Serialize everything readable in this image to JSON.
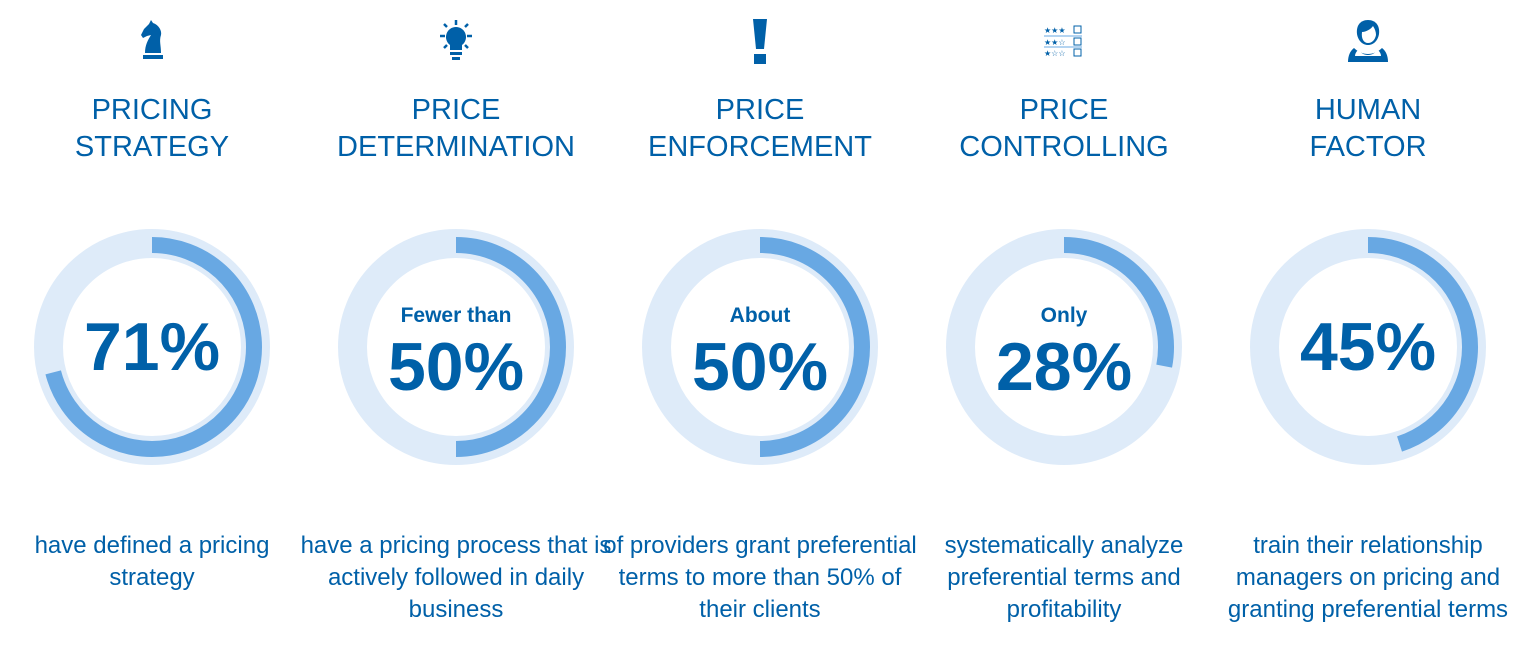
{
  "colors": {
    "text": "#0060a8",
    "arc": "#68a8e3",
    "track": "#deebf9"
  },
  "chart_data": [
    {
      "type": "donut",
      "icon": "chess-knight-icon",
      "title": [
        "PRICING",
        "STRATEGY"
      ],
      "prefix": "",
      "label": "71%",
      "value": 71,
      "description": "have defined a pricing strategy"
    },
    {
      "type": "donut",
      "icon": "lightbulb-icon",
      "title": [
        "PRICE",
        "DETERMINATION"
      ],
      "prefix": "Fewer than",
      "label": "50%",
      "value": 50,
      "description": "have a pricing process that is actively followed in daily business"
    },
    {
      "type": "donut",
      "icon": "exclamation-icon",
      "title": [
        "PRICE",
        "ENFORCEMENT"
      ],
      "prefix": "About",
      "label": "50%",
      "value": 50,
      "description": "of providers grant preferential terms to more than 50% of their clients"
    },
    {
      "type": "donut",
      "icon": "star-rating-checklist-icon",
      "title": [
        "PRICE",
        "CONTROLLING"
      ],
      "prefix": "Only",
      "label": "28%",
      "value": 28,
      "description": "systematically analyze preferential terms and profitability"
    },
    {
      "type": "donut",
      "icon": "person-icon",
      "title": [
        "HUMAN",
        "FACTOR"
      ],
      "prefix": "",
      "label": "45%",
      "value": 45,
      "description": "train their relationship managers on pricing and granting preferential terms"
    }
  ]
}
